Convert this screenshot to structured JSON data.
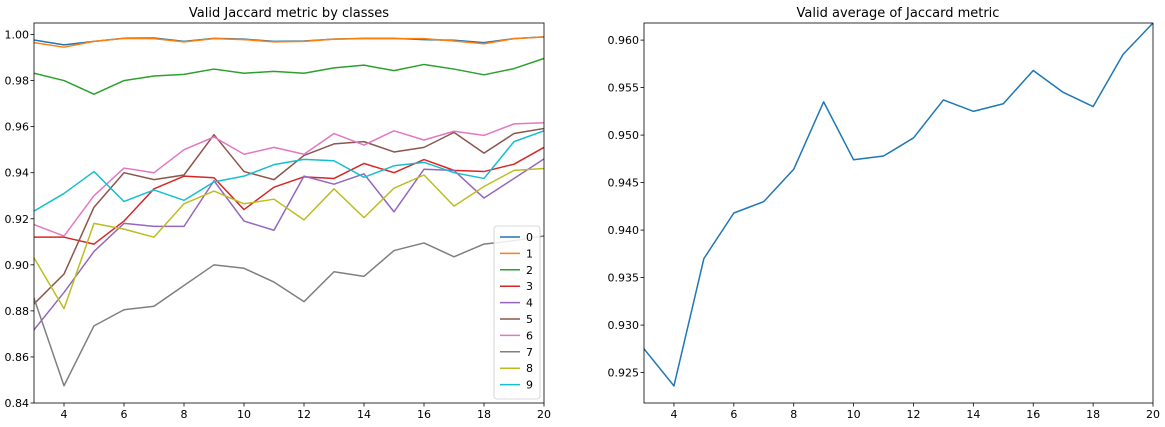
{
  "figure": {
    "background": "#ffffff"
  },
  "chart_data": [
    {
      "type": "line",
      "title": "Valid Jaccard metric by classes",
      "xlabel": "",
      "ylabel": "",
      "xlim": [
        3,
        20
      ],
      "ylim": [
        0.84,
        1.005
      ],
      "xticks": [
        4,
        6,
        8,
        10,
        12,
        14,
        16,
        18,
        20
      ],
      "yticks": [
        0.84,
        0.86,
        0.88,
        0.9,
        0.92,
        0.94,
        0.96,
        0.98,
        1.0
      ],
      "ytick_labels": [
        "0.84",
        "0.86",
        "0.88",
        "0.90",
        "0.92",
        "0.94",
        "0.96",
        "0.98",
        "1.00"
      ],
      "grid": false,
      "legend_position": "lower-right",
      "x": [
        3,
        4,
        5,
        6,
        7,
        8,
        9,
        10,
        11,
        12,
        13,
        14,
        15,
        16,
        17,
        18,
        19,
        20
      ],
      "series": [
        {
          "name": "0",
          "color": "#1f77b4",
          "values": [
            0.9976,
            0.9955,
            0.997,
            0.9984,
            0.9985,
            0.997,
            0.9983,
            0.998,
            0.997,
            0.9972,
            0.998,
            0.9983,
            0.9983,
            0.9978,
            0.9975,
            0.9965,
            0.9982,
            0.999
          ]
        },
        {
          "name": "1",
          "color": "#ff7f0e",
          "values": [
            0.9965,
            0.9945,
            0.997,
            0.9983,
            0.9982,
            0.9968,
            0.9982,
            0.9978,
            0.9968,
            0.997,
            0.998,
            0.9982,
            0.9982,
            0.9982,
            0.9972,
            0.996,
            0.9982,
            0.999
          ]
        },
        {
          "name": "2",
          "color": "#2ca02c",
          "values": [
            0.9832,
            0.98,
            0.9741,
            0.98,
            0.982,
            0.9827,
            0.985,
            0.9832,
            0.984,
            0.9832,
            0.9855,
            0.9867,
            0.9843,
            0.987,
            0.985,
            0.9825,
            0.9852,
            0.9896
          ]
        },
        {
          "name": "3",
          "color": "#d62728",
          "values": [
            0.912,
            0.912,
            0.909,
            0.919,
            0.933,
            0.9385,
            0.9378,
            0.924,
            0.9337,
            0.9382,
            0.9375,
            0.944,
            0.94,
            0.9457,
            0.941,
            0.9405,
            0.9437,
            0.951
          ]
        },
        {
          "name": "4",
          "color": "#9467bd",
          "values": [
            0.8718,
            0.888,
            0.9058,
            0.918,
            0.9167,
            0.9167,
            0.9365,
            0.919,
            0.915,
            0.9385,
            0.935,
            0.9395,
            0.923,
            0.9415,
            0.941,
            0.929,
            0.9375,
            0.946
          ]
        },
        {
          "name": "5",
          "color": "#8c564b",
          "values": [
            0.883,
            0.896,
            0.925,
            0.94,
            0.937,
            0.939,
            0.9565,
            0.9405,
            0.937,
            0.9475,
            0.9525,
            0.9535,
            0.949,
            0.951,
            0.9575,
            0.9485,
            0.957,
            0.9592
          ]
        },
        {
          "name": "6",
          "color": "#e377c2",
          "values": [
            0.9175,
            0.9125,
            0.93,
            0.942,
            0.94,
            0.95,
            0.9555,
            0.948,
            0.951,
            0.948,
            0.957,
            0.952,
            0.9582,
            0.9542,
            0.958,
            0.9562,
            0.9612,
            0.9617
          ]
        },
        {
          "name": "7",
          "color": "#7f7f7f",
          "values": [
            0.8855,
            0.8475,
            0.8735,
            0.8805,
            0.882,
            0.891,
            0.9,
            0.8985,
            0.8925,
            0.884,
            0.897,
            0.895,
            0.9062,
            0.9095,
            0.9035,
            0.909,
            0.9105,
            0.9125
          ]
        },
        {
          "name": "8",
          "color": "#bcbd22",
          "values": [
            0.903,
            0.881,
            0.918,
            0.9155,
            0.912,
            0.9265,
            0.932,
            0.9265,
            0.9285,
            0.9195,
            0.933,
            0.9205,
            0.9333,
            0.939,
            0.9255,
            0.934,
            0.941,
            0.9418
          ]
        },
        {
          "name": "9",
          "color": "#17becf",
          "values": [
            0.9233,
            0.931,
            0.9405,
            0.9275,
            0.9325,
            0.928,
            0.936,
            0.9385,
            0.9435,
            0.9458,
            0.9452,
            0.938,
            0.943,
            0.9445,
            0.94,
            0.9375,
            0.9535,
            0.9582
          ]
        }
      ]
    },
    {
      "type": "line",
      "title": "Valid average of Jaccard metric",
      "xlabel": "",
      "ylabel": "",
      "xlim": [
        3,
        20
      ],
      "ylim": [
        0.9218,
        0.9618
      ],
      "xticks": [
        4,
        6,
        8,
        10,
        12,
        14,
        16,
        18,
        20
      ],
      "yticks": [
        0.925,
        0.93,
        0.935,
        0.94,
        0.945,
        0.95,
        0.955,
        0.96
      ],
      "ytick_labels": [
        "0.925",
        "0.930",
        "0.935",
        "0.940",
        "0.945",
        "0.950",
        "0.955",
        "0.960"
      ],
      "grid": false,
      "x": [
        3,
        4,
        5,
        6,
        7,
        8,
        9,
        10,
        11,
        12,
        13,
        14,
        15,
        16,
        17,
        18,
        19,
        20
      ],
      "series": [
        {
          "color": "#1f77b4",
          "values": [
            0.9275,
            0.9236,
            0.937,
            0.9418,
            0.943,
            0.9464,
            0.9535,
            0.9474,
            0.9478,
            0.9497,
            0.9537,
            0.9525,
            0.9533,
            0.9568,
            0.9545,
            0.953,
            0.9585,
            0.9618
          ]
        }
      ]
    }
  ]
}
